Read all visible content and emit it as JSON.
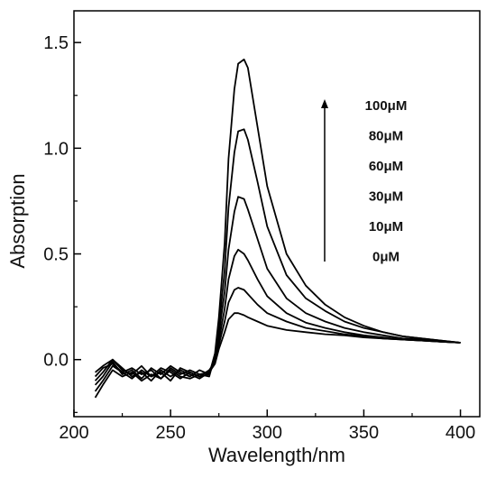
{
  "chart_data": {
    "type": "line",
    "xlabel": "Wavelength/nm",
    "ylabel": "Absorption",
    "xlim": [
      200,
      410
    ],
    "ylim": [
      -0.27,
      1.65
    ],
    "xticks": [
      200,
      250,
      300,
      350,
      400
    ],
    "yticks": [
      0.0,
      0.5,
      1.0,
      1.5
    ],
    "xtick_labels": [
      "200",
      "250",
      "300",
      "350",
      "400"
    ],
    "ytick_labels": [
      "0.0",
      "0.5",
      "1.0",
      "1.5"
    ],
    "legend_labels": [
      "100μM",
      "80μM",
      "60μM",
      "30μM",
      "10μM",
      "0μM"
    ],
    "arrow": "upward, increasing concentration",
    "grid": false,
    "series": [
      {
        "name": "0μM",
        "x": [
          211,
          215,
          220,
          225,
          230,
          235,
          240,
          245,
          250,
          255,
          260,
          265,
          270,
          273,
          275,
          278,
          280,
          283,
          285,
          288,
          290,
          295,
          300,
          310,
          320,
          330,
          340,
          350,
          360,
          370,
          380,
          390,
          400
        ],
        "values": [
          -0.18,
          -0.12,
          -0.05,
          -0.08,
          -0.06,
          -0.1,
          -0.07,
          -0.09,
          -0.05,
          -0.08,
          -0.09,
          -0.07,
          -0.06,
          -0.02,
          0.05,
          0.13,
          0.19,
          0.22,
          0.22,
          0.21,
          0.2,
          0.18,
          0.16,
          0.14,
          0.13,
          0.12,
          0.115,
          0.105,
          0.1,
          0.095,
          0.09,
          0.085,
          0.08
        ]
      },
      {
        "name": "10μM",
        "x": [
          211,
          215,
          220,
          225,
          230,
          235,
          240,
          245,
          250,
          255,
          260,
          265,
          270,
          273,
          275,
          278,
          280,
          283,
          285,
          288,
          290,
          295,
          300,
          310,
          320,
          330,
          340,
          350,
          360,
          370,
          380,
          390,
          400
        ],
        "values": [
          -0.15,
          -0.1,
          -0.03,
          -0.06,
          -0.09,
          -0.05,
          -0.08,
          -0.04,
          -0.06,
          -0.09,
          -0.06,
          -0.08,
          -0.05,
          -0.01,
          0.07,
          0.18,
          0.27,
          0.33,
          0.34,
          0.33,
          0.31,
          0.26,
          0.22,
          0.18,
          0.15,
          0.135,
          0.12,
          0.11,
          0.1,
          0.095,
          0.09,
          0.085,
          0.08
        ]
      },
      {
        "name": "30μM",
        "x": [
          211,
          215,
          220,
          225,
          230,
          235,
          240,
          245,
          250,
          255,
          260,
          265,
          270,
          273,
          275,
          278,
          280,
          283,
          285,
          288,
          290,
          295,
          300,
          310,
          320,
          330,
          340,
          350,
          360,
          370,
          380,
          390,
          400
        ],
        "values": [
          -0.12,
          -0.08,
          -0.01,
          -0.07,
          -0.05,
          -0.09,
          -0.04,
          -0.07,
          -0.03,
          -0.06,
          -0.08,
          -0.05,
          -0.07,
          0.0,
          0.09,
          0.24,
          0.38,
          0.49,
          0.52,
          0.5,
          0.47,
          0.38,
          0.3,
          0.22,
          0.175,
          0.15,
          0.13,
          0.115,
          0.105,
          0.095,
          0.09,
          0.085,
          0.08
        ]
      },
      {
        "name": "60μM",
        "x": [
          211,
          215,
          220,
          225,
          230,
          235,
          240,
          245,
          250,
          255,
          260,
          265,
          270,
          273,
          275,
          278,
          280,
          283,
          285,
          288,
          290,
          295,
          300,
          310,
          320,
          330,
          340,
          350,
          360,
          370,
          380,
          390,
          400
        ],
        "values": [
          -0.1,
          -0.06,
          0.0,
          -0.04,
          -0.08,
          -0.06,
          -0.1,
          -0.05,
          -0.08,
          -0.05,
          -0.07,
          -0.09,
          -0.06,
          0.01,
          0.12,
          0.32,
          0.52,
          0.7,
          0.77,
          0.76,
          0.71,
          0.57,
          0.43,
          0.29,
          0.22,
          0.18,
          0.15,
          0.13,
          0.115,
          0.1,
          0.095,
          0.085,
          0.08
        ]
      },
      {
        "name": "80μM",
        "x": [
          211,
          215,
          220,
          225,
          230,
          235,
          240,
          245,
          250,
          255,
          260,
          265,
          270,
          273,
          275,
          278,
          280,
          283,
          285,
          288,
          290,
          295,
          300,
          310,
          320,
          330,
          340,
          350,
          360,
          370,
          380,
          390,
          400
        ],
        "values": [
          -0.08,
          -0.04,
          -0.02,
          -0.06,
          -0.04,
          -0.07,
          -0.05,
          -0.09,
          -0.04,
          -0.07,
          -0.05,
          -0.07,
          -0.08,
          0.02,
          0.15,
          0.42,
          0.72,
          0.98,
          1.08,
          1.09,
          1.04,
          0.84,
          0.63,
          0.4,
          0.29,
          0.23,
          0.18,
          0.15,
          0.13,
          0.11,
          0.1,
          0.09,
          0.08
        ]
      },
      {
        "name": "100μM",
        "x": [
          211,
          215,
          220,
          225,
          230,
          235,
          240,
          245,
          250,
          255,
          260,
          265,
          270,
          273,
          275,
          278,
          280,
          283,
          285,
          288,
          290,
          295,
          300,
          310,
          320,
          330,
          340,
          350,
          360,
          370,
          380,
          390,
          400
        ],
        "values": [
          -0.06,
          -0.03,
          0.0,
          -0.05,
          -0.07,
          -0.03,
          -0.08,
          -0.06,
          -0.1,
          -0.04,
          -0.06,
          -0.08,
          -0.07,
          0.03,
          0.2,
          0.55,
          0.95,
          1.28,
          1.4,
          1.42,
          1.38,
          1.1,
          0.82,
          0.5,
          0.35,
          0.26,
          0.2,
          0.16,
          0.13,
          0.11,
          0.1,
          0.09,
          0.08
        ]
      }
    ]
  }
}
